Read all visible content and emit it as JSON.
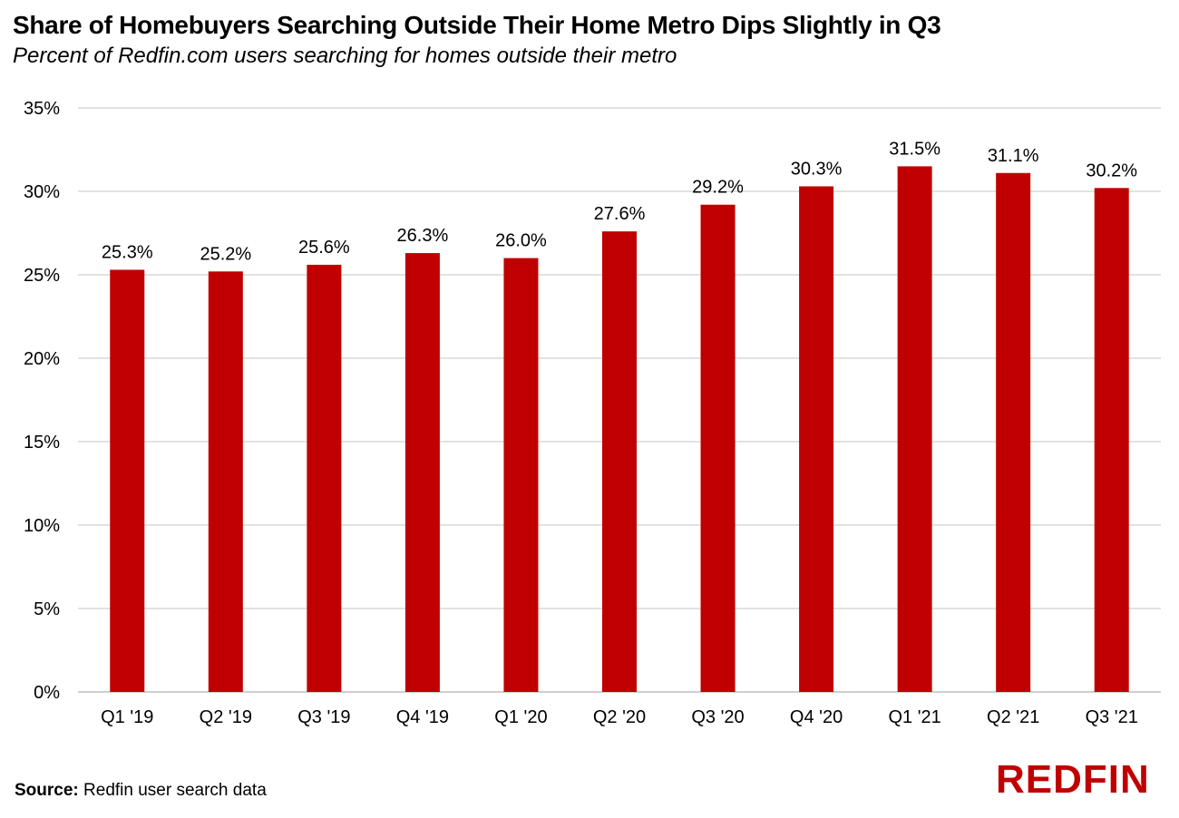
{
  "title": "Share of Homebuyers Searching Outside Their Home Metro Dips Slightly in Q3",
  "subtitle": "Percent of Redfin.com users searching for homes outside their metro",
  "source": {
    "label": "Source:",
    "text": "Redfin user search data"
  },
  "logo": {
    "text": "REDFIN",
    "color": "#c00000"
  },
  "chart_data": {
    "type": "bar",
    "categories": [
      "Q1 '19",
      "Q2 '19",
      "Q3 '19",
      "Q4 '19",
      "Q1 '20",
      "Q2 '20",
      "Q3 '20",
      "Q4 '20",
      "Q1 '21",
      "Q2 '21",
      "Q3 '21"
    ],
    "values": [
      25.3,
      25.2,
      25.6,
      26.3,
      26.0,
      27.6,
      29.2,
      30.3,
      31.5,
      31.1,
      30.2
    ],
    "data_labels": [
      "25.3%",
      "25.2%",
      "25.6%",
      "26.3%",
      "26.0%",
      "27.6%",
      "29.2%",
      "30.3%",
      "31.5%",
      "31.1%",
      "30.2%"
    ],
    "ylim": [
      0,
      35
    ],
    "yticks": [
      0,
      5,
      10,
      15,
      20,
      25,
      30,
      35
    ],
    "ytick_labels": [
      "0%",
      "5%",
      "10%",
      "15%",
      "20%",
      "25%",
      "30%",
      "35%"
    ],
    "grid": true,
    "bar_color": "#c00000",
    "grid_color": "#d9d9d9"
  }
}
